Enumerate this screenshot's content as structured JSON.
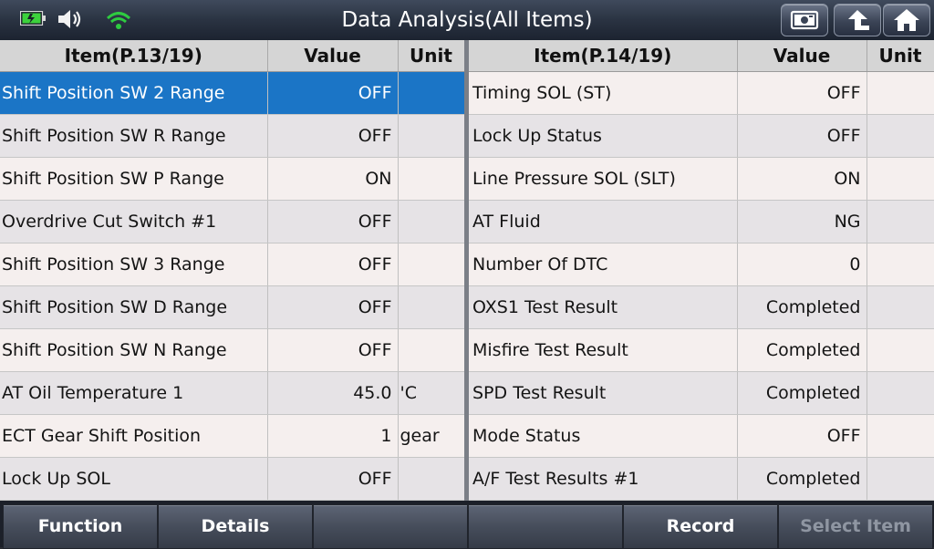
{
  "header": {
    "title": "Data Analysis(All Items)",
    "colors": {
      "battery": "#3cd23c",
      "wifi": "#2ecc40"
    }
  },
  "left_table": {
    "columns": [
      "Item(P.13/19)",
      "Value",
      "Unit"
    ],
    "rows": [
      {
        "item": "Shift Position SW 2 Range",
        "value": "OFF",
        "unit": ""
      },
      {
        "item": "Shift Position SW R Range",
        "value": "OFF",
        "unit": ""
      },
      {
        "item": "Shift Position SW P Range",
        "value": "ON",
        "unit": ""
      },
      {
        "item": "Overdrive Cut Switch #1",
        "value": "OFF",
        "unit": ""
      },
      {
        "item": "Shift Position SW 3 Range",
        "value": "OFF",
        "unit": ""
      },
      {
        "item": "Shift Position SW D Range",
        "value": "OFF",
        "unit": ""
      },
      {
        "item": "Shift Position SW N Range",
        "value": "OFF",
        "unit": ""
      },
      {
        "item": "AT Oil Temperature 1",
        "value": "45.0",
        "unit": "'C"
      },
      {
        "item": "ECT Gear Shift Position",
        "value": "1",
        "unit": "gear"
      },
      {
        "item": "Lock Up SOL",
        "value": "OFF",
        "unit": ""
      }
    ]
  },
  "right_table": {
    "columns": [
      "Item(P.14/19)",
      "Value",
      "Unit"
    ],
    "rows": [
      {
        "item": "Timing SOL (ST)",
        "value": "OFF",
        "unit": ""
      },
      {
        "item": "Lock Up Status",
        "value": "OFF",
        "unit": ""
      },
      {
        "item": "Line Pressure SOL (SLT)",
        "value": "ON",
        "unit": ""
      },
      {
        "item": "AT Fluid",
        "value": "NG",
        "unit": ""
      },
      {
        "item": "Number Of DTC",
        "value": "0",
        "unit": ""
      },
      {
        "item": "OXS1 Test Result",
        "value": "Completed",
        "unit": ""
      },
      {
        "item": "Misfire Test Result",
        "value": "Completed",
        "unit": ""
      },
      {
        "item": "SPD Test Result",
        "value": "Completed",
        "unit": ""
      },
      {
        "item": "Mode Status",
        "value": "OFF",
        "unit": ""
      },
      {
        "item": "A/F Test Results #1",
        "value": "Completed",
        "unit": ""
      }
    ]
  },
  "toolbar": {
    "buttons": [
      "Function",
      "Details",
      "",
      "",
      "Record",
      "Select Item"
    ]
  }
}
